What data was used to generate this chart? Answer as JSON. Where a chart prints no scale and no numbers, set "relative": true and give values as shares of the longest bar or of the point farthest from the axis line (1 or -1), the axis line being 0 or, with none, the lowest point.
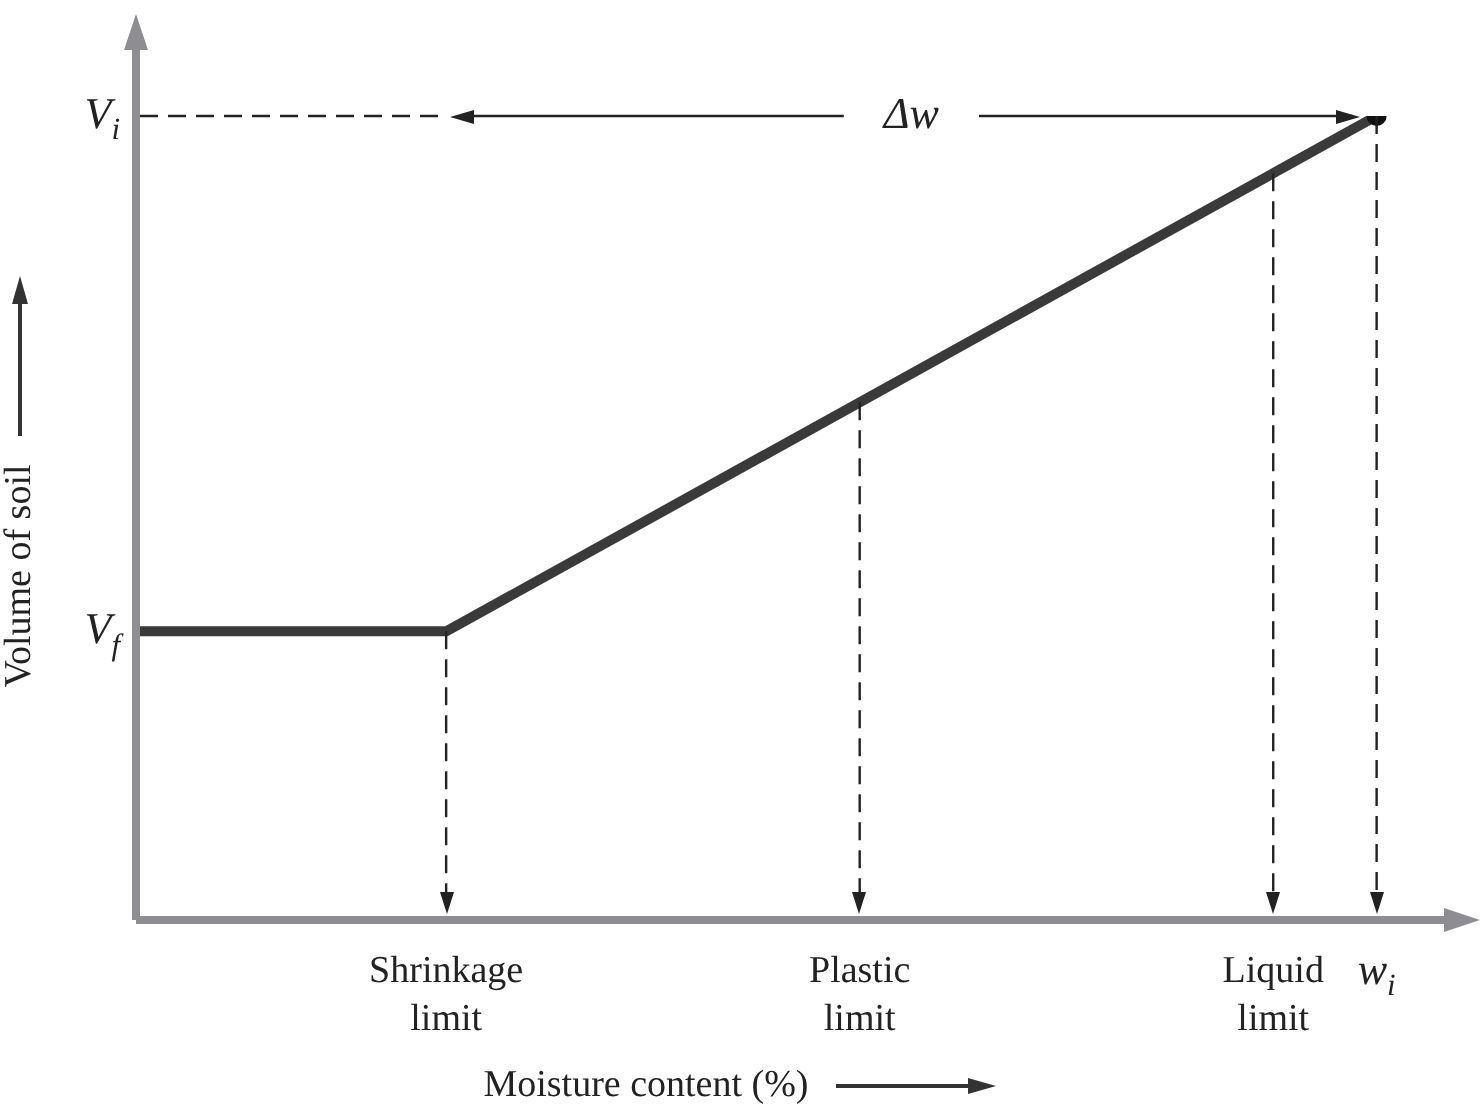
{
  "chart_data": {
    "type": "line",
    "xlabel": "Moisture content (%)",
    "ylabel": "Volume of soil",
    "relative": true,
    "categories": [
      null,
      null,
      null,
      "Shrinkage limit",
      null,
      null,
      null,
      "Plastic limit",
      null,
      null,
      null,
      "Liquid limit",
      "w$_{i}$",
      null
    ],
    "series": [
      {
        "color": "#3a3a3a",
        "values": [
          0.359,
          null,
          null,
          0.359,
          null,
          null,
          null,
          null,
          null,
          null,
          null,
          null,
          1,
          null
        ]
      }
    ],
    "ref_lines": [
      {
        "axis": "y",
        "value": 1,
        "label": "V$_{i}$",
        "line_style": "dashed"
      },
      {
        "axis": "x",
        "value": "Shrinkage limit",
        "line_style": "dashed"
      },
      {
        "axis": "x",
        "value": "Plastic limit",
        "line_style": "dashed"
      },
      {
        "axis": "x",
        "value": "Liquid limit",
        "line_style": "dashed"
      },
      {
        "axis": "x",
        "value": "w$_{i}$",
        "line_style": "dashed"
      }
    ],
    "annotations": [
      "Δw",
      "V$_{f}$"
    ],
    "grid": false,
    "legend": false
  }
}
